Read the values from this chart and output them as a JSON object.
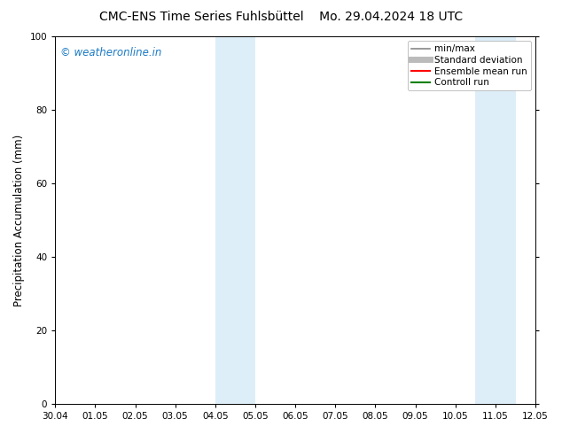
{
  "title": "CMC-ENS Time Series Fuhlsbüttel    Mo. 29.04.2024 18 UTC",
  "ylabel": "Precipitation Accumulation (mm)",
  "ylim": [
    0,
    100
  ],
  "yticks": [
    0,
    20,
    40,
    60,
    80,
    100
  ],
  "x_labels": [
    "30.04",
    "01.05",
    "02.05",
    "03.05",
    "04.05",
    "05.05",
    "06.05",
    "07.05",
    "08.05",
    "09.05",
    "10.05",
    "11.05",
    "12.05"
  ],
  "x_values": [
    0,
    1,
    2,
    3,
    4,
    5,
    6,
    7,
    8,
    9,
    10,
    11,
    12
  ],
  "shade_bands": [
    {
      "xmin": 4.0,
      "xmax": 4.5,
      "color": "#ddeef8",
      "alpha": 1.0
    },
    {
      "xmin": 4.5,
      "xmax": 5.0,
      "color": "#ddeef8",
      "alpha": 1.0
    },
    {
      "xmin": 10.5,
      "xmax": 11.0,
      "color": "#ddeef8",
      "alpha": 1.0
    },
    {
      "xmin": 11.0,
      "xmax": 11.5,
      "color": "#ddeef8",
      "alpha": 1.0
    }
  ],
  "legend_items": [
    {
      "label": "min/max",
      "color": "#888888",
      "lw": 1.2
    },
    {
      "label": "Standard deviation",
      "color": "#bbbbbb",
      "lw": 5
    },
    {
      "label": "Ensemble mean run",
      "color": "#ff0000",
      "lw": 1.5
    },
    {
      "label": "Controll run",
      "color": "#008000",
      "lw": 1.5
    }
  ],
  "watermark": "© weatheronline.in",
  "watermark_color": "#1a7ac4",
  "bg_color": "#ffffff",
  "plot_bg_color": "#ffffff",
  "tick_label_fontsize": 7.5,
  "axis_label_fontsize": 8.5,
  "title_fontsize": 10,
  "watermark_fontsize": 8.5
}
